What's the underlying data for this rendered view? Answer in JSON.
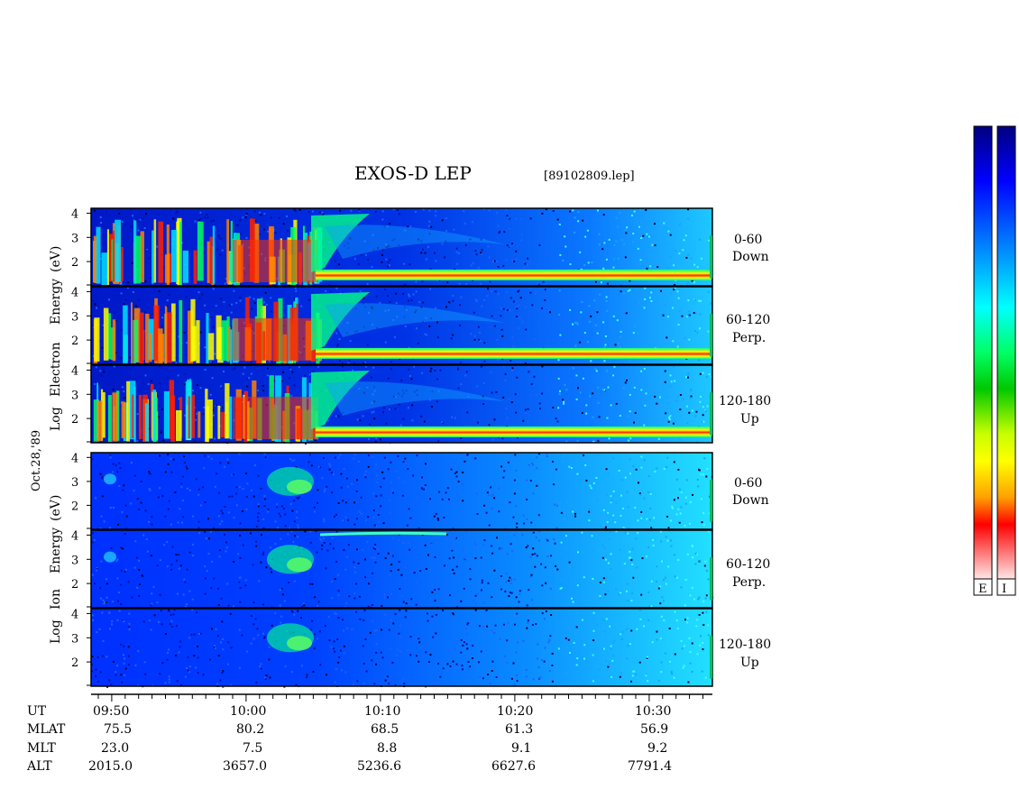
{
  "title": "EXOS-D LEP",
  "file_label": "[89102809.lep]",
  "date_label": "Oct.28,'89",
  "colors": {
    "background": "#ffffff",
    "dark_blue": "#00007f",
    "blue": "#0040ff",
    "cyan": "#00ffff",
    "green": "#00cc00",
    "yellow": "#ffff00",
    "red": "#ff0000",
    "pink": "#ffe0e0"
  },
  "colorbar": {
    "labels": [
      "E",
      "I"
    ],
    "stops": [
      "#00007f",
      "#0000ff",
      "#0090ff",
      "#00ffff",
      "#00ff66",
      "#00c800",
      "#c8ff00",
      "#ffff00",
      "#ffa000",
      "#ff0000",
      "#ffe6e6"
    ]
  },
  "chart_data": {
    "type": "heatmap",
    "panels_group_electron": {
      "ylabel": [
        "Log",
        "Electron",
        "Energy",
        "(eV)"
      ],
      "panels": [
        {
          "ticks": [
            "4",
            "3",
            "2"
          ],
          "label1": "0-60",
          "label2": "Down"
        },
        {
          "ticks": [
            "4",
            "3",
            "2"
          ],
          "label1": "60-120",
          "label2": "Perp."
        },
        {
          "ticks": [
            "4",
            "3",
            "2"
          ],
          "label1": "120-180",
          "label2": "Up"
        }
      ]
    },
    "panels_group_ion": {
      "ylabel": [
        "Log",
        "Ion",
        "Energy",
        "(eV)"
      ],
      "panels": [
        {
          "ticks": [
            "4",
            "3",
            "2"
          ],
          "label1": "0-60",
          "label2": "Down"
        },
        {
          "ticks": [
            "4",
            "3",
            "2"
          ],
          "label1": "60-120",
          "label2": "Perp."
        },
        {
          "ticks": [
            "4",
            "3",
            "2"
          ],
          "label1": "120-180",
          "label2": "Up"
        }
      ]
    },
    "ylim": [
      1,
      4.2
    ],
    "x_rows": {
      "labels": [
        "UT",
        "MLAT",
        "MLT",
        "ALT"
      ],
      "columns": [
        {
          "UT": "09:50",
          "MLAT": "75.5",
          "MLT": "23.0",
          "ALT": "2015.0"
        },
        {
          "UT": "10:00",
          "MLAT": "80.2",
          "MLT": "7.5",
          "ALT": "3657.0"
        },
        {
          "UT": "10:10",
          "MLAT": "68.5",
          "MLT": "8.8",
          "ALT": "5236.6"
        },
        {
          "UT": "10:20",
          "MLAT": "61.3",
          "MLT": "9.1",
          "ALT": "6627.6"
        },
        {
          "UT": "10:30",
          "MLAT": "56.9",
          "MLT": "9.2",
          "ALT": "7791.4"
        }
      ]
    }
  }
}
